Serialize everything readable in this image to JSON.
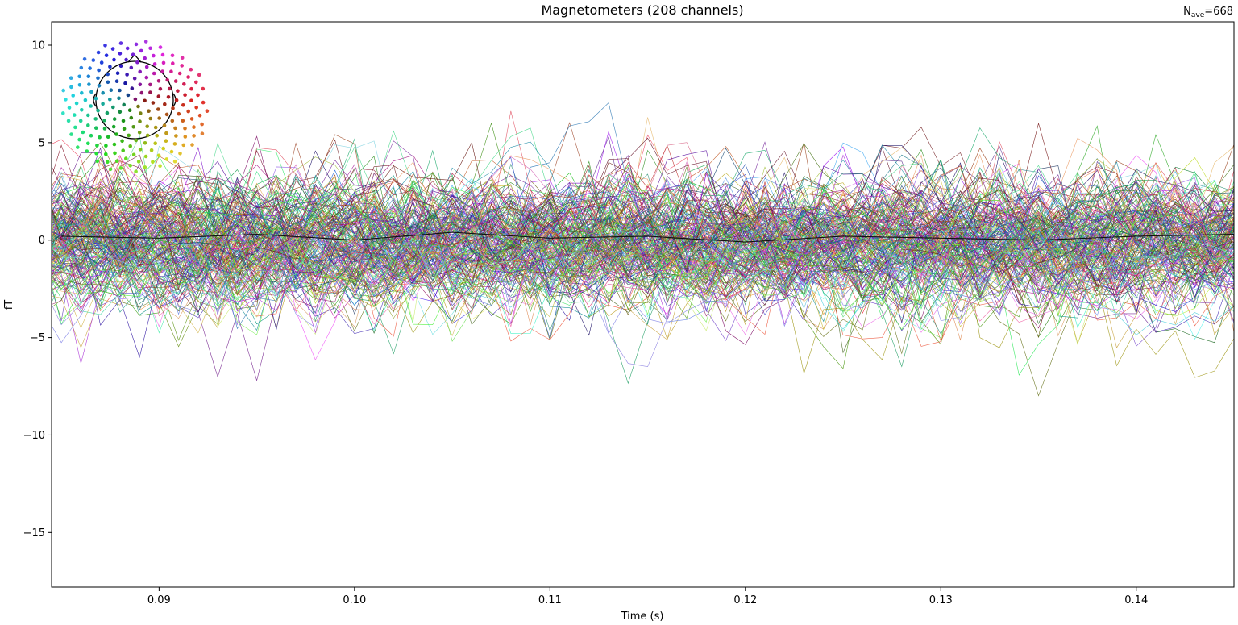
{
  "chart_data": {
    "type": "line",
    "title": "Magnetometers (208 channels)",
    "annotation": {
      "prefix": "N",
      "subscript": "ave",
      "suffix": "=668"
    },
    "xlabel": "Time (s)",
    "ylabel": "fT",
    "xlim": [
      0.0845,
      0.145
    ],
    "ylim": [
      -17.8,
      11.2
    ],
    "x_ticks": [
      0.09,
      0.1,
      0.11,
      0.12,
      0.13,
      0.14
    ],
    "x_tick_labels": [
      "0.09",
      "0.10",
      "0.11",
      "0.12",
      "0.13",
      "0.14"
    ],
    "y_ticks": [
      10,
      5,
      0,
      -5,
      -10,
      -15
    ],
    "y_tick_labels": [
      "10",
      "5",
      "0",
      "−5",
      "−10",
      "−15"
    ],
    "grid": false,
    "legend": "none",
    "channel_count": 208,
    "sample_interval_s": 0.001,
    "mean_trace": {
      "x": [
        0.085,
        0.09,
        0.095,
        0.1,
        0.105,
        0.11,
        0.115,
        0.12,
        0.125,
        0.13,
        0.135,
        0.14,
        0.145
      ],
      "y": [
        0.2,
        0.1,
        0.3,
        0.0,
        0.4,
        0.1,
        0.2,
        -0.1,
        0.2,
        0.1,
        0.0,
        0.2,
        0.3
      ]
    },
    "approx_range_fT": [
      -17.5,
      11.2
    ],
    "inset": "sensor-layout-head"
  }
}
